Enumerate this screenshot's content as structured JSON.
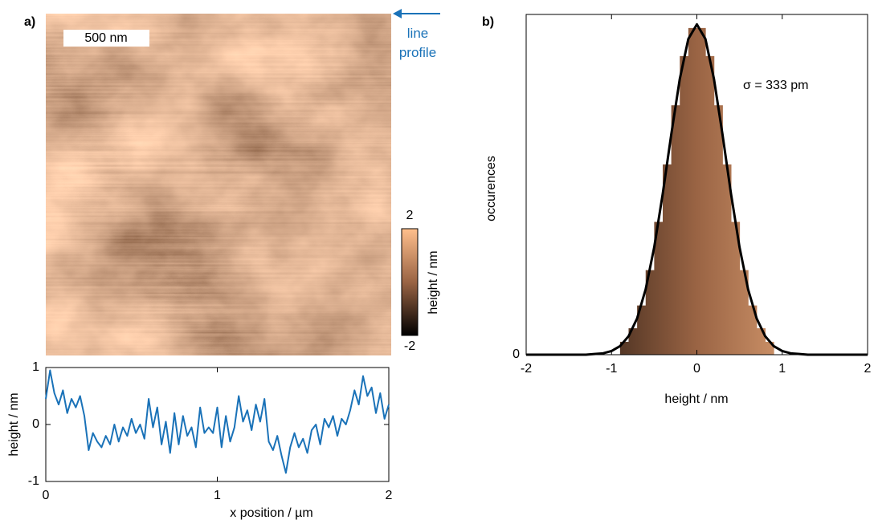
{
  "chart_data": [
    {
      "type": "image",
      "label": "a)",
      "scale_bar": "500 nm",
      "annotation": "line profile",
      "annotation_color": "#1a72b8",
      "colorbar": {
        "label": "height / nm",
        "clim": [
          -2,
          2
        ],
        "ticks": [
          -2,
          2
        ],
        "colormap": [
          "#000000",
          "#9a6444",
          "#ffbf8c"
        ]
      }
    },
    {
      "type": "line",
      "xlabel": "x position / µm",
      "ylabel": "height / nm",
      "xlim": [
        0,
        2
      ],
      "ylim": [
        -1,
        1
      ],
      "xticks": [
        0,
        1,
        2
      ],
      "yticks": [
        -1,
        0,
        1
      ],
      "x": [
        0,
        0.025,
        0.05,
        0.075,
        0.1,
        0.125,
        0.15,
        0.175,
        0.2,
        0.225,
        0.25,
        0.275,
        0.3,
        0.325,
        0.35,
        0.375,
        0.4,
        0.425,
        0.45,
        0.475,
        0.5,
        0.525,
        0.55,
        0.575,
        0.6,
        0.625,
        0.65,
        0.675,
        0.7,
        0.725,
        0.75,
        0.775,
        0.8,
        0.825,
        0.85,
        0.875,
        0.9,
        0.925,
        0.95,
        0.975,
        1.0,
        1.025,
        1.05,
        1.075,
        1.1,
        1.125,
        1.15,
        1.175,
        1.2,
        1.225,
        1.25,
        1.275,
        1.3,
        1.325,
        1.35,
        1.375,
        1.4,
        1.425,
        1.45,
        1.475,
        1.5,
        1.525,
        1.55,
        1.575,
        1.6,
        1.625,
        1.65,
        1.675,
        1.7,
        1.725,
        1.75,
        1.775,
        1.8,
        1.825,
        1.85,
        1.875,
        1.9,
        1.925,
        1.95,
        1.975,
        2.0
      ],
      "series": [
        {
          "color": "#1a72b8",
          "values": [
            0.45,
            0.95,
            0.55,
            0.35,
            0.6,
            0.2,
            0.45,
            0.3,
            0.5,
            0.15,
            -0.45,
            -0.15,
            -0.3,
            -0.4,
            -0.2,
            -0.35,
            0.0,
            -0.3,
            -0.05,
            -0.2,
            0.1,
            -0.15,
            0.0,
            -0.25,
            0.45,
            -0.05,
            0.3,
            -0.35,
            0.05,
            -0.5,
            0.2,
            -0.35,
            0.15,
            -0.2,
            -0.05,
            -0.4,
            0.3,
            -0.15,
            -0.05,
            -0.15,
            0.3,
            -0.4,
            0.15,
            -0.3,
            -0.05,
            0.5,
            0.05,
            0.25,
            -0.1,
            0.35,
            0.05,
            0.45,
            -0.3,
            -0.45,
            -0.2,
            -0.55,
            -0.85,
            -0.4,
            -0.15,
            -0.4,
            -0.25,
            -0.5,
            -0.1,
            0.0,
            -0.35,
            0.1,
            -0.05,
            0.15,
            -0.2,
            0.1,
            0.0,
            0.25,
            0.6,
            0.35,
            0.85,
            0.5,
            0.65,
            0.2,
            0.55,
            0.1,
            0.35
          ]
        }
      ]
    },
    {
      "type": "histogram",
      "label": "b)",
      "xlabel": "height / nm",
      "ylabel": "occurences",
      "annotation": "σ = 333 pm",
      "xlim": [
        -2,
        2
      ],
      "ylim": [
        0,
        1.03
      ],
      "xticks": [
        -2,
        -1,
        0,
        1,
        2
      ],
      "yticks": [
        0
      ],
      "bins": [
        -0.9,
        -0.8,
        -0.7,
        -0.6,
        -0.5,
        -0.4,
        -0.3,
        -0.2,
        -0.1,
        0,
        0.1,
        0.2,
        0.3,
        0.4,
        0.5,
        0.6,
        0.7,
        0.8,
        0.9
      ],
      "counts": [
        0.039,
        0.08,
        0.149,
        0.256,
        0.402,
        0.576,
        0.755,
        0.904,
        0.989,
        0.989,
        0.904,
        0.755,
        0.576,
        0.402,
        0.256,
        0.149,
        0.08,
        0.039
      ],
      "fit": {
        "color": "#000000",
        "x": [
          -2,
          -1.9,
          -1.8,
          -1.7,
          -1.6,
          -1.5,
          -1.4,
          -1.3,
          -1.2,
          -1.1,
          -1,
          -0.9,
          -0.8,
          -0.7,
          -0.6,
          -0.5,
          -0.4,
          -0.3,
          -0.2,
          -0.1,
          0,
          0.1,
          0.2,
          0.3,
          0.4,
          0.5,
          0.6,
          0.7,
          0.8,
          0.9,
          1,
          1.1,
          1.2,
          1.3,
          1.4,
          1.5,
          1.6,
          1.7,
          1.8,
          1.9,
          2
        ],
        "values": [
          0,
          0,
          0,
          0,
          0,
          0,
          0,
          0,
          0.002,
          0.004,
          0.011,
          0.026,
          0.056,
          0.11,
          0.198,
          0.325,
          0.487,
          0.667,
          0.835,
          0.956,
          1,
          0.956,
          0.835,
          0.667,
          0.487,
          0.325,
          0.198,
          0.11,
          0.056,
          0.026,
          0.011,
          0.004,
          0.002,
          0,
          0,
          0,
          0,
          0,
          0,
          0,
          0
        ]
      }
    }
  ]
}
